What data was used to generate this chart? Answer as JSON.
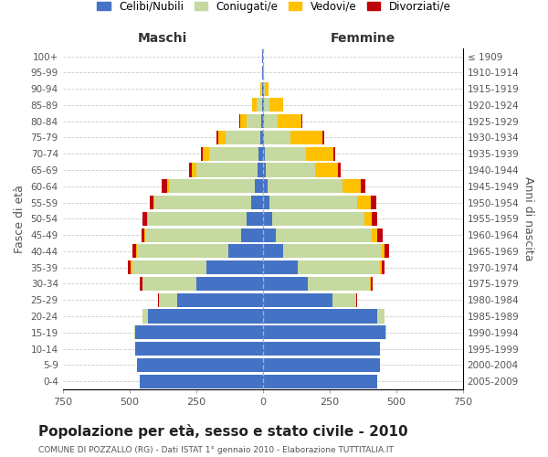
{
  "age_groups": [
    "0-4",
    "5-9",
    "10-14",
    "15-19",
    "20-24",
    "25-29",
    "30-34",
    "35-39",
    "40-44",
    "45-49",
    "50-54",
    "55-59",
    "60-64",
    "65-69",
    "70-74",
    "75-79",
    "80-84",
    "85-89",
    "90-94",
    "95-99",
    "100+"
  ],
  "birth_years": [
    "2005-2009",
    "2000-2004",
    "1995-1999",
    "1990-1994",
    "1985-1989",
    "1980-1984",
    "1975-1979",
    "1970-1974",
    "1965-1969",
    "1960-1964",
    "1955-1959",
    "1950-1954",
    "1945-1949",
    "1940-1944",
    "1935-1939",
    "1930-1934",
    "1925-1929",
    "1920-1924",
    "1915-1919",
    "1910-1914",
    "≤ 1909"
  ],
  "colors": {
    "celibe": "#4472c4",
    "coniugato": "#c5d9a0",
    "vedovo": "#ffc000",
    "divorziato": "#c0000a"
  },
  "maschi": {
    "celibe": [
      460,
      470,
      480,
      480,
      430,
      320,
      250,
      210,
      130,
      80,
      60,
      45,
      30,
      20,
      15,
      8,
      5,
      4,
      2,
      1,
      1
    ],
    "coniugato": [
      0,
      0,
      0,
      2,
      20,
      70,
      200,
      280,
      340,
      360,
      370,
      360,
      320,
      230,
      185,
      130,
      55,
      20,
      3,
      1,
      0
    ],
    "vedovo": [
      0,
      0,
      0,
      0,
      0,
      1,
      2,
      5,
      5,
      5,
      5,
      5,
      10,
      15,
      25,
      30,
      25,
      15,
      5,
      2,
      1
    ],
    "divorziato": [
      0,
      0,
      0,
      0,
      1,
      2,
      8,
      10,
      15,
      10,
      15,
      15,
      20,
      10,
      8,
      5,
      3,
      0,
      0,
      0,
      0
    ]
  },
  "femmine": {
    "nubile": [
      430,
      440,
      440,
      460,
      430,
      260,
      170,
      130,
      75,
      50,
      35,
      25,
      18,
      12,
      8,
      5,
      5,
      5,
      3,
      1,
      1
    ],
    "coniugata": [
      0,
      0,
      0,
      3,
      25,
      90,
      230,
      310,
      370,
      360,
      345,
      330,
      280,
      185,
      155,
      100,
      50,
      20,
      4,
      1,
      0
    ],
    "vedova": [
      0,
      0,
      0,
      0,
      1,
      2,
      5,
      5,
      10,
      20,
      30,
      50,
      70,
      85,
      100,
      120,
      90,
      50,
      15,
      3,
      1
    ],
    "divorziata": [
      0,
      0,
      0,
      0,
      1,
      3,
      8,
      10,
      20,
      20,
      20,
      20,
      18,
      10,
      10,
      5,
      4,
      2,
      0,
      0,
      0
    ]
  },
  "xlim": 750,
  "title": "Popolazione per età, sesso e stato civile - 2010",
  "subtitle": "COMUNE DI POZZALLO (RG) - Dati ISTAT 1° gennaio 2010 - Elaborazione TUTTITALIA.IT",
  "xlabel_left": "Maschi",
  "xlabel_right": "Femmine",
  "ylabel_left": "Fasce di età",
  "ylabel_right": "Anni di nascita",
  "legend_labels": [
    "Celibi/Nubili",
    "Coniugati/e",
    "Vedovi/e",
    "Divorziati/e"
  ],
  "xtick_labels": [
    "750",
    "500",
    "250",
    "0",
    "250",
    "500",
    "750"
  ]
}
